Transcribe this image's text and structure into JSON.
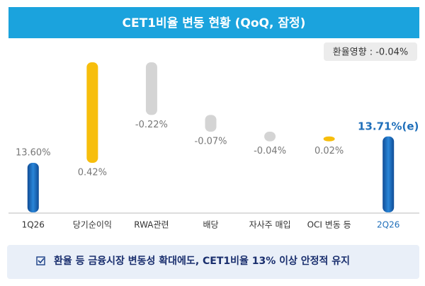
{
  "chart_data": {
    "type": "waterfall",
    "title": "CET1비율  변동 현황 (QoQ, 잠정)",
    "annotation": "환율영향 : -0.04%",
    "categories": [
      "1Q26",
      "당기순이익",
      "RWA관련",
      "배당",
      "자사주 매입",
      "OCI 변동 등",
      "2Q26"
    ],
    "values": [
      13.6,
      0.42,
      -0.22,
      -0.07,
      -0.04,
      0.02,
      13.71
    ],
    "value_labels": [
      "13.60%",
      "0.42%",
      "-0.22%",
      "-0.07%",
      "-0.04%",
      "0.02%",
      "13.71%(e)"
    ],
    "totals": [
      true,
      false,
      false,
      false,
      false,
      false,
      true
    ],
    "colors": {
      "total": "#1a62b5",
      "increase": "#f7be0c",
      "decrease": "#d4d4d4",
      "final_label": "#1f6fba"
    },
    "footer": "환율 등 금융시장 변동성 확대에도, CET1비율 13% 이상 안정적 유지"
  }
}
